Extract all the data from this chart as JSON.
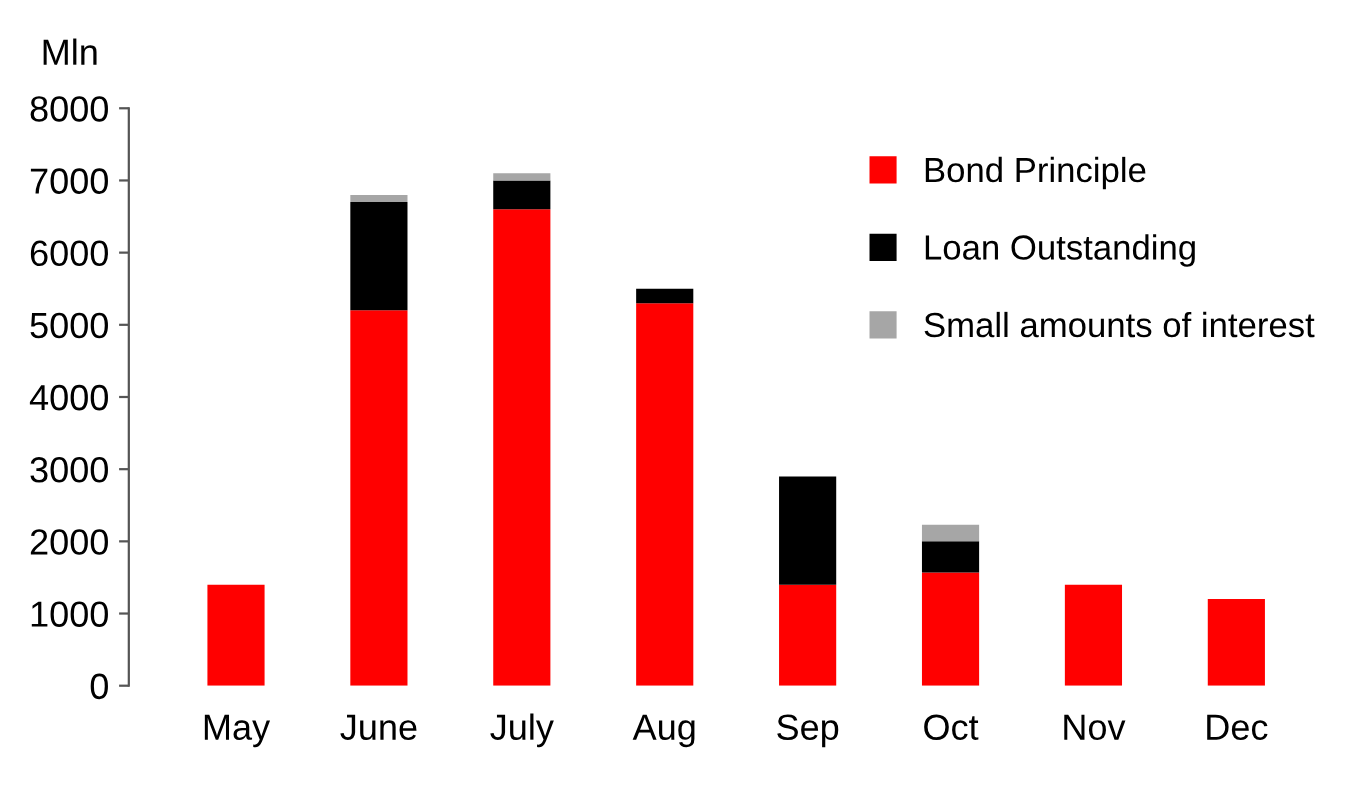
{
  "chart_data": {
    "type": "bar",
    "stacked": true,
    "ylabel": "Mln",
    "categories": [
      "May",
      "June",
      "July",
      "Aug",
      "Sep",
      "Oct",
      "Nov",
      "Dec"
    ],
    "series": [
      {
        "name": "Bond Principle",
        "color": "#ff0000",
        "values": [
          1400,
          5200,
          6600,
          5300,
          1400,
          1570,
          1400,
          1200
        ]
      },
      {
        "name": "Loan Outstanding",
        "color": "#000000",
        "values": [
          0,
          1500,
          400,
          200,
          1500,
          430,
          0,
          0
        ]
      },
      {
        "name": "Small amounts of interest",
        "color": "#a6a6a6",
        "values": [
          0,
          100,
          100,
          0,
          0,
          230,
          0,
          0
        ]
      }
    ],
    "ylim": [
      0,
      8000
    ],
    "yticks": [
      0,
      1000,
      2000,
      3000,
      4000,
      5000,
      6000,
      7000,
      8000
    ],
    "grid": false,
    "legend": "top right"
  }
}
